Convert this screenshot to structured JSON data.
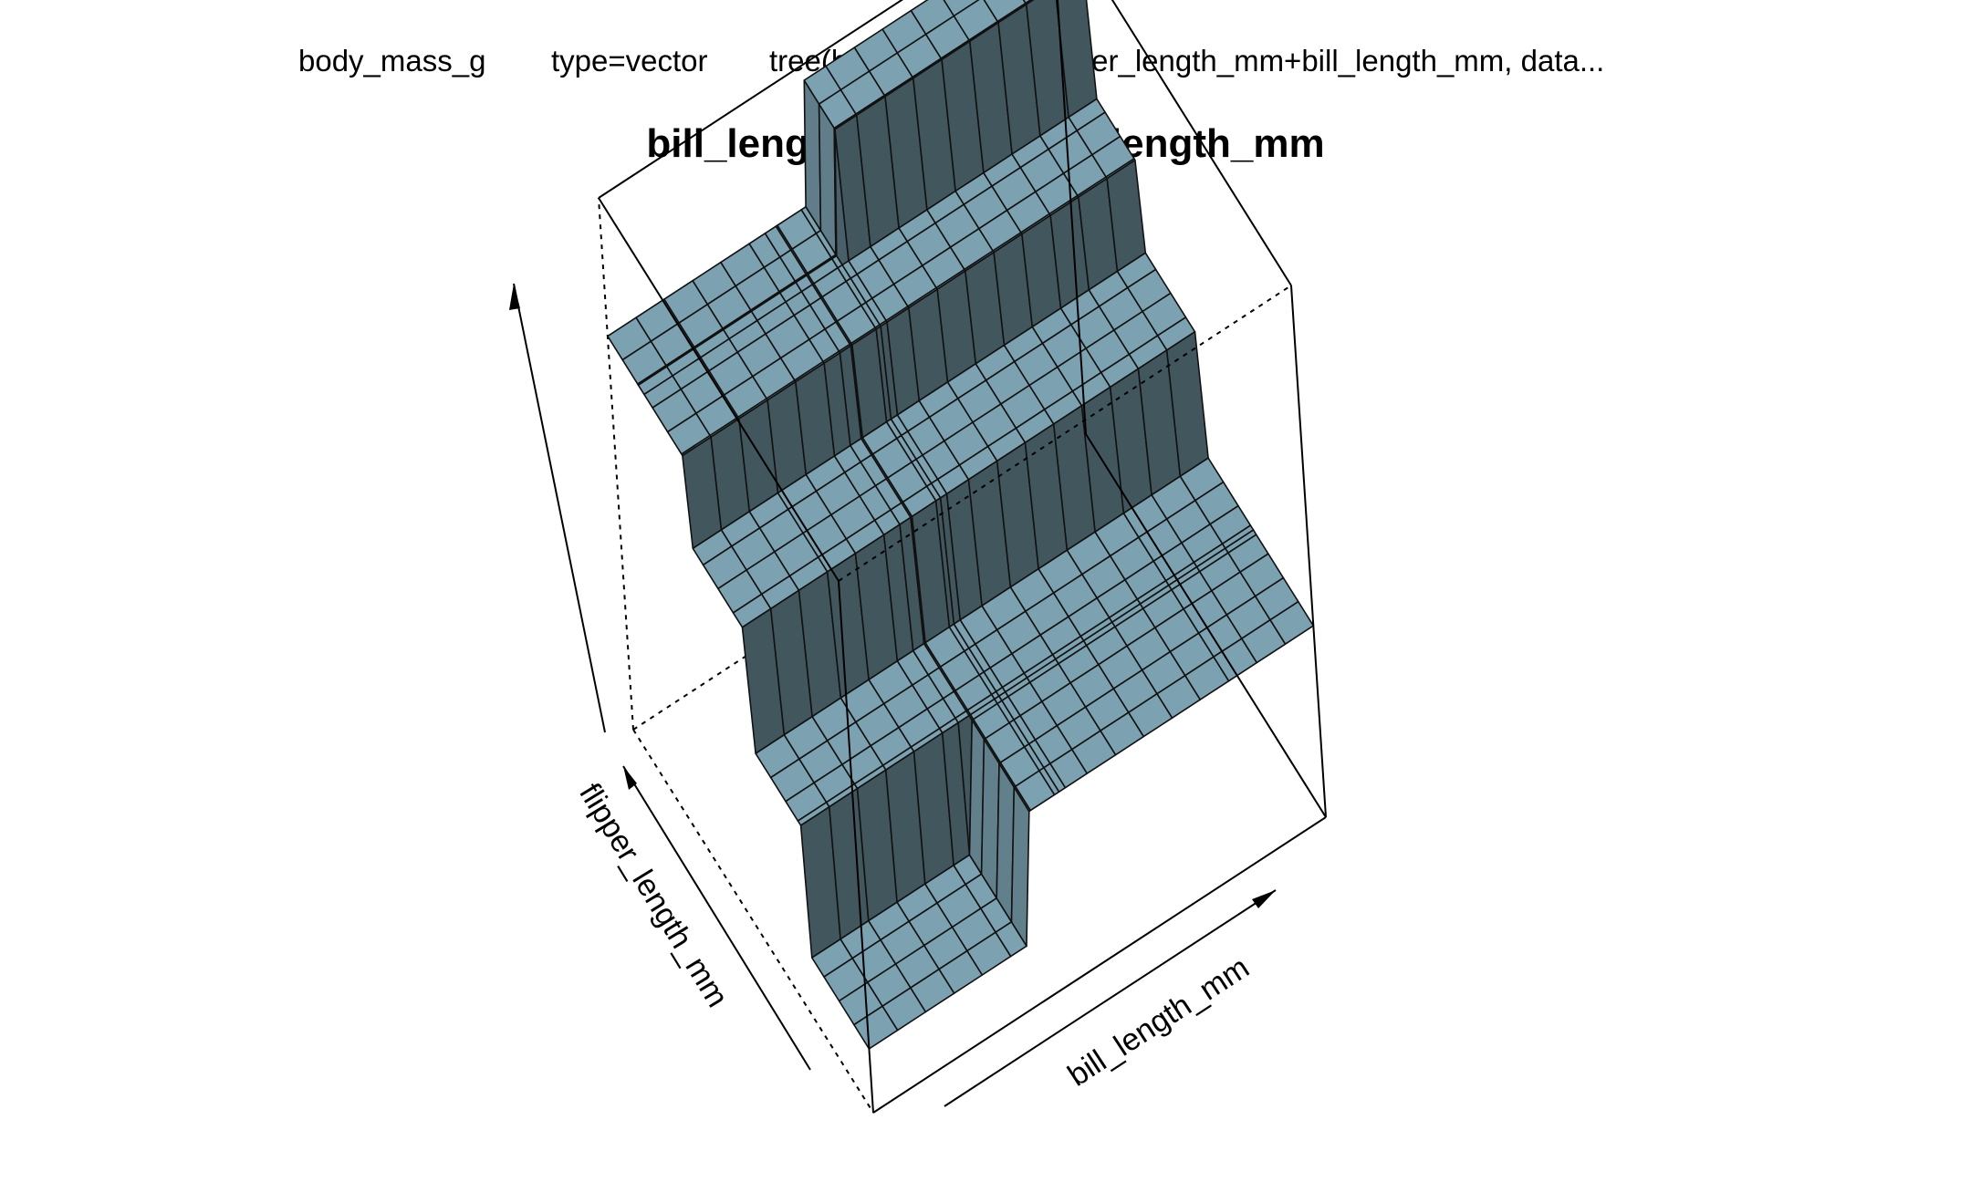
{
  "header": {
    "response": "body_mass_g",
    "type": "type=vector",
    "model": "tree(body_mass_g~flipper_length_mm+bill_length_mm, data..."
  },
  "chart_data": {
    "type": "surface",
    "title": "bill_length_mm: flipper_length_mm",
    "xlabel": "bill_length_mm",
    "ylabel": "flipper_length_mm",
    "zlabel": "",
    "grid_size": [
      16,
      16
    ],
    "x_range": [
      0,
      1
    ],
    "y_range": [
      0,
      1
    ],
    "z_range": [
      0,
      1
    ],
    "colors": {
      "surface_light": "#8ab6c8",
      "surface_mid": "#6b8e9e",
      "surface_dark": "#34444b",
      "edge": "#111111"
    },
    "surface_levels_relative": [
      0.12,
      0.36,
      0.58,
      0.74,
      0.97
    ],
    "note_values": "relative heights of the regression tree's terminal-node predictions (z axis has no tick labels)"
  }
}
